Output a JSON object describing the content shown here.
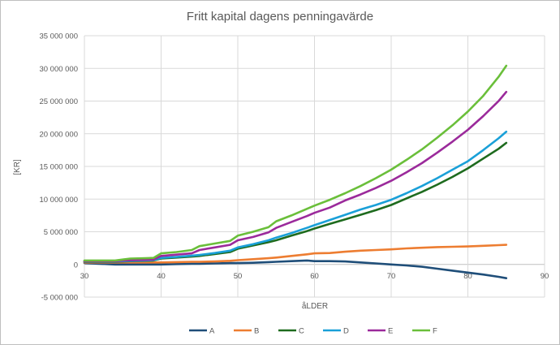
{
  "chart_data": {
    "type": "line",
    "title": "Fritt kapital dagens penningavärde",
    "xlabel": "åLDER",
    "ylabel": "[KR]",
    "xlim": [
      30,
      90
    ],
    "ylim": [
      -5000000,
      35000000
    ],
    "x_ticks": [
      "30",
      "40",
      "50",
      "60",
      "70",
      "80",
      "90"
    ],
    "y_ticks": [
      "-5 000 000",
      "0",
      "5 000 000",
      "10 000 000",
      "15 000 000",
      "20 000 000",
      "25 000 000",
      "30 000 000",
      "35 000 000"
    ],
    "grid": true,
    "legend_position": "bottom",
    "x": [
      30,
      34,
      35,
      36,
      38,
      39,
      40,
      42,
      44,
      45,
      47,
      49,
      50,
      52,
      54,
      55,
      57,
      59,
      60,
      62,
      64,
      66,
      68,
      70,
      72,
      74,
      76,
      78,
      80,
      82,
      84,
      85
    ],
    "series": [
      {
        "name": "A",
        "color": "#1f4e79",
        "values": [
          200000,
          0,
          0,
          0,
          0,
          0,
          0,
          50000,
          100000,
          100000,
          150000,
          200000,
          200000,
          250000,
          350000,
          400000,
          500000,
          600000,
          500000,
          500000,
          450000,
          300000,
          150000,
          0,
          -150000,
          -350000,
          -650000,
          -950000,
          -1250000,
          -1550000,
          -1900000,
          -2100000
        ]
      },
      {
        "name": "B",
        "color": "#ed7d31",
        "values": [
          300000,
          300000,
          300000,
          300000,
          300000,
          300000,
          300000,
          350000,
          400000,
          400000,
          450000,
          550000,
          650000,
          800000,
          950000,
          1050000,
          1300000,
          1550000,
          1700000,
          1750000,
          1950000,
          2100000,
          2200000,
          2300000,
          2450000,
          2550000,
          2650000,
          2700000,
          2750000,
          2850000,
          2950000,
          3000000
        ]
      },
      {
        "name": "C",
        "color": "#1e6b1e",
        "values": [
          400000,
          400000,
          450000,
          500000,
          550000,
          600000,
          900000,
          1050000,
          1200000,
          1300000,
          1600000,
          1900000,
          2400000,
          2900000,
          3400000,
          3700000,
          4400000,
          5100000,
          5500000,
          6200000,
          6900000,
          7600000,
          8300000,
          9100000,
          10100000,
          11100000,
          12200000,
          13400000,
          14700000,
          16200000,
          17700000,
          18600000
        ]
      },
      {
        "name": "D",
        "color": "#1aa0d8",
        "values": [
          450000,
          450000,
          500000,
          550000,
          600000,
          650000,
          1000000,
          1150000,
          1350000,
          1450000,
          1750000,
          2100000,
          2600000,
          3100000,
          3700000,
          4100000,
          4800000,
          5600000,
          6000000,
          6800000,
          7600000,
          8400000,
          9100000,
          9900000,
          10900000,
          12000000,
          13200000,
          14500000,
          15800000,
          17500000,
          19300000,
          20300000
        ]
      },
      {
        "name": "E",
        "color": "#9b2a9b",
        "values": [
          500000,
          500000,
          600000,
          650000,
          700000,
          750000,
          1300000,
          1500000,
          1700000,
          2200000,
          2600000,
          3000000,
          3700000,
          4200000,
          4900000,
          5600000,
          6500000,
          7400000,
          7900000,
          8700000,
          9800000,
          10700000,
          11700000,
          12800000,
          14100000,
          15500000,
          17100000,
          18800000,
          20600000,
          22700000,
          25000000,
          26400000
        ]
      },
      {
        "name": "F",
        "color": "#6abf3a",
        "values": [
          600000,
          600000,
          750000,
          900000,
          950000,
          1000000,
          1700000,
          1900000,
          2200000,
          2800000,
          3200000,
          3600000,
          4400000,
          5000000,
          5700000,
          6600000,
          7500000,
          8500000,
          9000000,
          9900000,
          10900000,
          12000000,
          13200000,
          14500000,
          16000000,
          17600000,
          19400000,
          21300000,
          23400000,
          25800000,
          28700000,
          30400000
        ]
      }
    ]
  }
}
